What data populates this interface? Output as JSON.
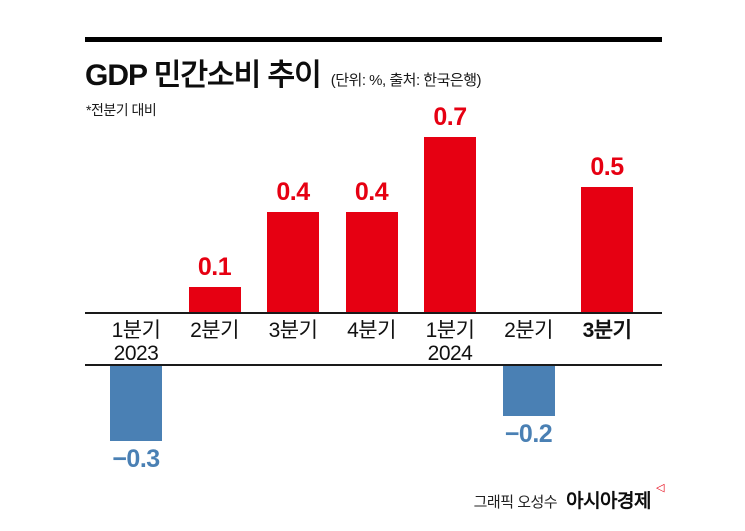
{
  "header": {
    "title": "GDP 민간소비 추이",
    "subtitle": "(단위: %, 출처: 한국은행)",
    "note": "*전분기 대비"
  },
  "chart_data": {
    "type": "bar",
    "title": "GDP 민간소비 추이",
    "unit": "%",
    "source": "한국은행",
    "categories": [
      "1분기 2023",
      "2분기",
      "3분기",
      "4분기",
      "1분기 2024",
      "2분기",
      "3분기"
    ],
    "values": [
      -0.3,
      0.1,
      0.4,
      0.4,
      0.7,
      -0.2,
      0.5
    ],
    "ylim": [
      -0.4,
      0.8
    ],
    "grid": false,
    "legend": "none",
    "positive_color": "#e60012",
    "negative_color": "#4a80b4",
    "bars": [
      {
        "label": "1분기",
        "sublabel": "2023",
        "value": -0.3,
        "display": "−0.3",
        "bold": false
      },
      {
        "label": "2분기",
        "sublabel": "",
        "value": 0.1,
        "display": "0.1",
        "bold": false
      },
      {
        "label": "3분기",
        "sublabel": "",
        "value": 0.4,
        "display": "0.4",
        "bold": false
      },
      {
        "label": "4분기",
        "sublabel": "",
        "value": 0.4,
        "display": "0.4",
        "bold": false
      },
      {
        "label": "1분기",
        "sublabel": "2024",
        "value": 0.7,
        "display": "0.7",
        "bold": false
      },
      {
        "label": "2분기",
        "sublabel": "",
        "value": -0.2,
        "display": "−0.2",
        "bold": false
      },
      {
        "label": "3분기",
        "sublabel": "",
        "value": 0.5,
        "display": "0.5",
        "bold": true
      }
    ]
  },
  "footer": {
    "credit": "그래픽 오성수",
    "brand": "아시아경제",
    "brand_mark": "◁"
  }
}
